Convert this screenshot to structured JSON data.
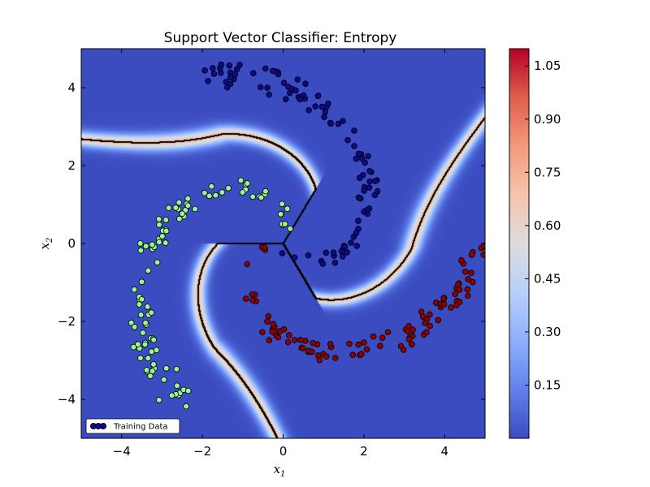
{
  "chart_data": {
    "type": "heatmap",
    "title": "Support Vector Classifier: Entropy",
    "xlabel_base": "x",
    "xlabel_sub": "1",
    "ylabel_base": "x",
    "ylabel_sub": "2",
    "xlim": [
      -5,
      5
    ],
    "ylim": [
      -5,
      5
    ],
    "x_ticks": [
      {
        "value": -4,
        "label": "−4"
      },
      {
        "value": -2,
        "label": "−2"
      },
      {
        "value": 0,
        "label": "0"
      },
      {
        "value": 2,
        "label": "2"
      },
      {
        "value": 4,
        "label": "4"
      }
    ],
    "y_ticks": [
      {
        "value": 4,
        "label": "4"
      },
      {
        "value": 2,
        "label": "2"
      },
      {
        "value": 0,
        "label": "0"
      },
      {
        "value": -2,
        "label": "−2"
      },
      {
        "value": -4,
        "label": "−4"
      }
    ],
    "colorbar": {
      "min": 0.0,
      "max": 1.0986,
      "colormap": "coolwarm",
      "ticks": [
        {
          "value": 1.05,
          "label": "1.05"
        },
        {
          "value": 0.9,
          "label": "0.90"
        },
        {
          "value": 0.75,
          "label": "0.75"
        },
        {
          "value": 0.6,
          "label": "0.60"
        },
        {
          "value": 0.45,
          "label": "0.45"
        },
        {
          "value": 0.3,
          "label": "0.30"
        },
        {
          "value": 0.15,
          "label": "0.15"
        }
      ]
    },
    "legend": {
      "label": "Training Data",
      "placement": "lower-left"
    },
    "classes": [
      {
        "color": "#8b0000",
        "angle_offset_deg": 180
      },
      {
        "color": "#98f592",
        "angle_offset_deg": 60
      },
      {
        "color": "#0a0a8a",
        "angle_offset_deg": -60
      }
    ],
    "spiral": {
      "r_max": 4.8,
      "turn_rad": 3.1
    },
    "points_per_class": 100
  }
}
